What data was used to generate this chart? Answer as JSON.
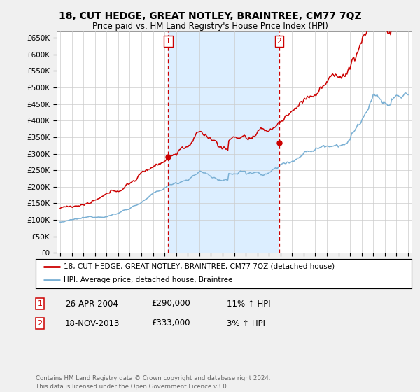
{
  "title": "18, CUT HEDGE, GREAT NOTLEY, BRAINTREE, CM77 7QZ",
  "subtitle": "Price paid vs. HM Land Registry's House Price Index (HPI)",
  "title_fontsize": 10,
  "subtitle_fontsize": 8.5,
  "ylabel_ticks": [
    "£0",
    "£50K",
    "£100K",
    "£150K",
    "£200K",
    "£250K",
    "£300K",
    "£350K",
    "£400K",
    "£450K",
    "£500K",
    "£550K",
    "£600K",
    "£650K"
  ],
  "ytick_values": [
    0,
    50000,
    100000,
    150000,
    200000,
    250000,
    300000,
    350000,
    400000,
    450000,
    500000,
    550000,
    600000,
    650000
  ],
  "ylim": [
    0,
    670000
  ],
  "xlim_start": 1994.7,
  "xlim_end": 2025.3,
  "background_color": "#f0f0f0",
  "plot_bg_color": "#ffffff",
  "grid_color": "#cccccc",
  "red_color": "#cc0000",
  "blue_color": "#7ab0d4",
  "shade_color": "#dceeff",
  "annotation_color": "#cc0000",
  "sale1_x": 2004.32,
  "sale1_y": 290000,
  "sale1_label": "1",
  "sale2_x": 2013.88,
  "sale2_y": 333000,
  "sale2_label": "2",
  "legend_label_red": "18, CUT HEDGE, GREAT NOTLEY, BRAINTREE, CM77 7QZ (detached house)",
  "legend_label_blue": "HPI: Average price, detached house, Braintree",
  "footer": "Contains HM Land Registry data © Crown copyright and database right 2024.\nThis data is licensed under the Open Government Licence v3.0.",
  "xtick_years": [
    1995,
    1996,
    1997,
    1998,
    1999,
    2000,
    2001,
    2002,
    2003,
    2004,
    2005,
    2006,
    2007,
    2008,
    2009,
    2010,
    2011,
    2012,
    2013,
    2014,
    2015,
    2016,
    2017,
    2018,
    2019,
    2020,
    2021,
    2022,
    2023,
    2024,
    2025
  ],
  "row1_num": "1",
  "row1_date": "26-APR-2004",
  "row1_price": "£290,000",
  "row1_hpi": "11% ↑ HPI",
  "row2_num": "2",
  "row2_date": "18-NOV-2013",
  "row2_price": "£333,000",
  "row2_hpi": "3% ↑ HPI"
}
